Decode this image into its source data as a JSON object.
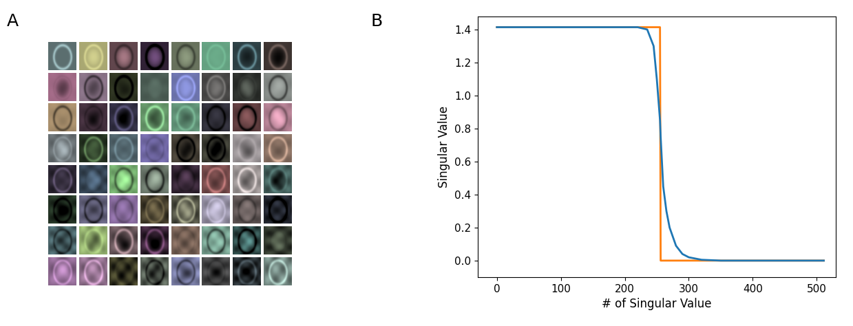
{
  "panel_labels": [
    "A",
    "B"
  ],
  "chart_data": {
    "type": "line",
    "xlabel": "# of Singular Value",
    "ylabel": "Singular Value",
    "x": [
      0,
      220,
      235,
      245,
      250,
      254,
      255,
      256,
      260,
      265,
      270,
      280,
      290,
      300,
      320,
      350,
      400,
      511
    ],
    "series": [
      {
        "color": "#ff7f0e",
        "values": [
          1.414,
          1.414,
          1.414,
          1.414,
          1.414,
          1.414,
          1.414,
          0.0,
          0.0,
          0.0,
          0.0,
          0.0,
          0.0,
          0.0,
          0.0,
          0.0,
          0.0,
          0.0
        ]
      },
      {
        "color": "#1f77b4",
        "values": [
          1.414,
          1.414,
          1.4,
          1.3,
          1.1,
          0.9,
          0.85,
          0.75,
          0.45,
          0.3,
          0.2,
          0.09,
          0.04,
          0.02,
          0.005,
          0.0,
          0.0,
          0.0
        ]
      }
    ],
    "xlim": [
      -30,
      530
    ],
    "ylim": [
      -0.1,
      1.48
    ],
    "xticks": [
      0,
      100,
      200,
      300,
      400,
      500
    ],
    "yticks": [
      {
        "value": 0.0,
        "label": "0.0"
      },
      {
        "value": 0.2,
        "label": "0.2"
      },
      {
        "value": 0.4,
        "label": "0.4"
      },
      {
        "value": 0.6,
        "label": "0.6"
      },
      {
        "value": 0.8,
        "label": "0.8"
      },
      {
        "value": 1.0,
        "label": "1.0"
      },
      {
        "value": 1.2,
        "label": "1.2"
      },
      {
        "value": 1.4,
        "label": "1.4"
      }
    ],
    "grid": false
  }
}
